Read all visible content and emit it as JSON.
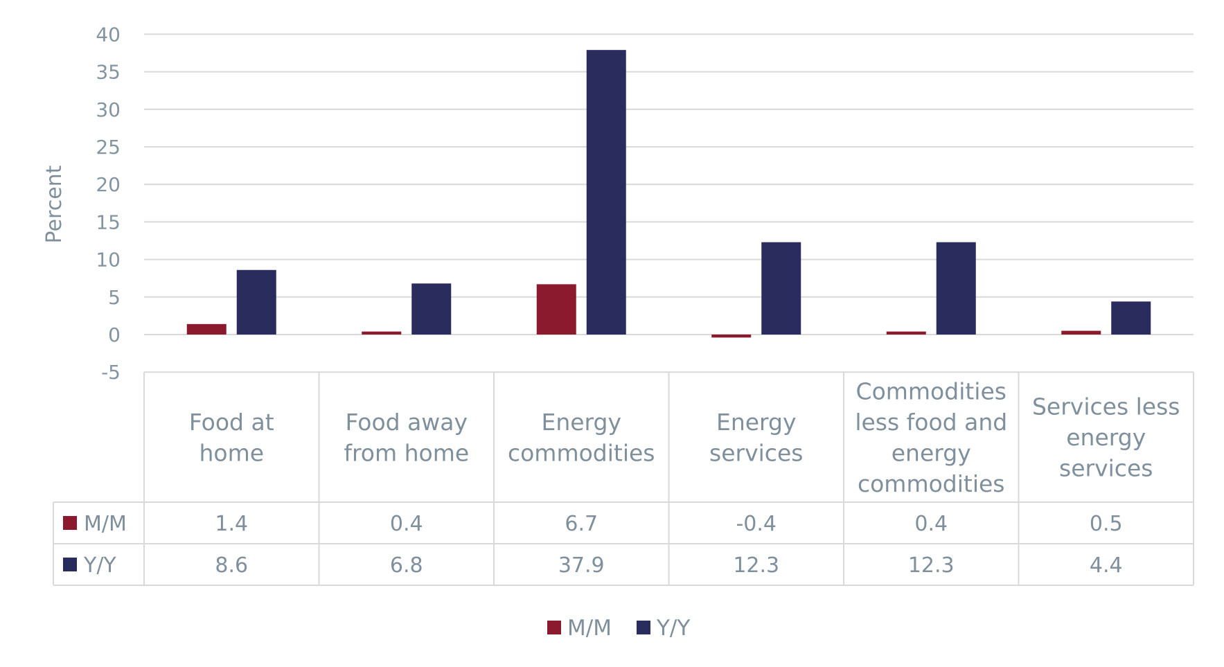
{
  "chart_data": {
    "type": "bar",
    "title": "",
    "xlabel": "",
    "ylabel": "Percent",
    "ylim": [
      -5,
      40
    ],
    "yticks": [
      -5,
      0,
      5,
      10,
      15,
      20,
      25,
      30,
      35,
      40
    ],
    "grid": true,
    "legend_position": "bottom",
    "data_table": true,
    "categories": [
      "Food at home",
      "Food away from home",
      "Energy commodities",
      "Energy services",
      "Commodities less food and energy commodities",
      "Services less energy services"
    ],
    "category_lines": [
      [
        "Food at",
        "home"
      ],
      [
        "Food away",
        "from home"
      ],
      [
        "Energy",
        "commodities"
      ],
      [
        "Energy",
        "services"
      ],
      [
        "Commodities",
        "less food and",
        "energy",
        "commodities"
      ],
      [
        "Services less",
        "energy",
        "services"
      ]
    ],
    "series": [
      {
        "name": "M/M",
        "color": "#8c1a2f",
        "values": [
          1.4,
          0.4,
          6.7,
          -0.4,
          0.4,
          0.5
        ]
      },
      {
        "name": "Y/Y",
        "color": "#2a2c5e",
        "values": [
          8.6,
          6.8,
          37.9,
          12.3,
          12.3,
          4.4
        ]
      }
    ]
  }
}
